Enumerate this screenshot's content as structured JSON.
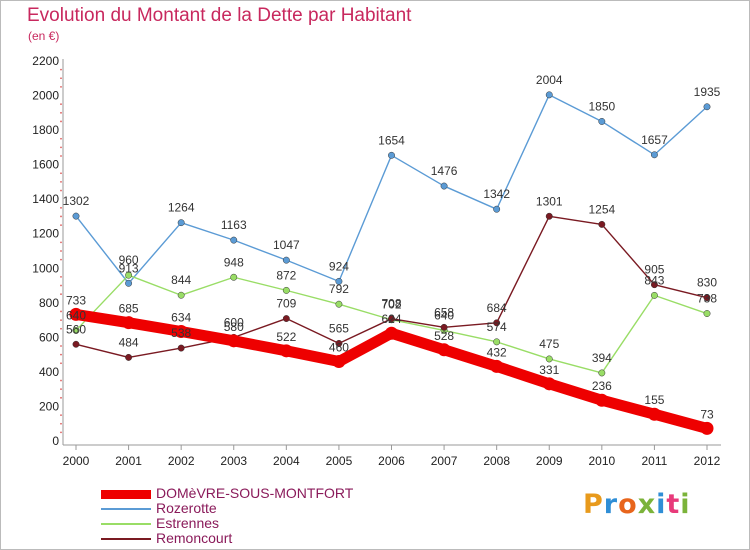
{
  "header": {
    "title": "Evolution du Montant de la Dette par Habitant",
    "subtitle": "(en €)"
  },
  "logo": {
    "text": "Proxiti",
    "colors": [
      "#e89a1c",
      "#2f8ed6",
      "#e8651c",
      "#7bb33a",
      "#2f8ed6",
      "#e83a7a",
      "#7bb33a"
    ]
  },
  "chart_data": {
    "type": "line",
    "title": "Evolution du Montant de la Dette par Habitant",
    "subtitle": "(en €)",
    "xlabel": "",
    "ylabel": "",
    "x": [
      "2000",
      "2001",
      "2002",
      "2003",
      "2004",
      "2005",
      "2006",
      "2007",
      "2008",
      "2009",
      "2010",
      "2011",
      "2012"
    ],
    "ylim": [
      0,
      2200
    ],
    "yticks": [
      0,
      200,
      400,
      600,
      800,
      1000,
      1200,
      1400,
      1600,
      1800,
      2000,
      2200
    ],
    "grid": false,
    "legend_position": "bottom-left",
    "series": [
      {
        "name": "DOMèVRE-SOUS-MONTFORT",
        "color": "#ee0000",
        "values": [
          733,
          685,
          634,
          580,
          522,
          460,
          624,
          528,
          432,
          331,
          236,
          155,
          73
        ]
      },
      {
        "name": "Rozerotte",
        "color": "#5b9bd5",
        "values": [
          1302,
          913,
          1264,
          1163,
          1047,
          924,
          1654,
          1476,
          1342,
          2004,
          1850,
          1657,
          1935
        ]
      },
      {
        "name": "Estrennes",
        "color": "#99dd66",
        "values": [
          640,
          960,
          844,
          948,
          872,
          792,
          702,
          640,
          574,
          475,
          394,
          843,
          738
        ]
      },
      {
        "name": "Remoncourt",
        "color": "#7a1a22",
        "values": [
          560,
          484,
          538,
          600,
          709,
          565,
          708,
          658,
          684,
          1301,
          1254,
          905,
          830
        ]
      }
    ]
  }
}
